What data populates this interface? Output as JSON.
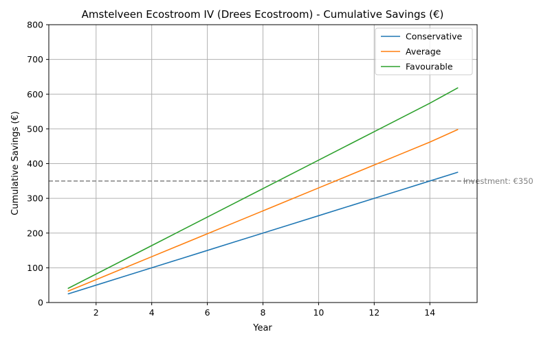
{
  "chart_data": {
    "type": "line",
    "title": "Amstelveen Ecostroom IV (Drees Ecostroom) - Cumulative Savings (€)",
    "xlabel": "Year",
    "ylabel": "Cumulative Savings (€)",
    "x": [
      1,
      2,
      3,
      4,
      5,
      6,
      7,
      8,
      9,
      10,
      11,
      12,
      13,
      14,
      15
    ],
    "xlim": [
      0.3,
      15.7
    ],
    "ylim": [
      0,
      800
    ],
    "xticks": [
      2,
      4,
      6,
      8,
      10,
      12,
      14
    ],
    "yticks": [
      0,
      100,
      200,
      300,
      400,
      500,
      600,
      700,
      800
    ],
    "grid": true,
    "legend_position": "top-right",
    "series": [
      {
        "name": "Conservative",
        "color": "#1f77b4",
        "values": [
          25,
          50,
          75,
          100,
          125,
          150,
          175,
          200,
          225,
          250,
          275,
          300,
          325,
          350,
          375
        ]
      },
      {
        "name": "Average",
        "color": "#ff7f0e",
        "values": [
          33,
          66,
          99,
          132,
          165,
          198,
          231,
          264,
          297,
          330,
          363,
          396,
          429,
          462,
          498
        ]
      },
      {
        "name": "Favourable",
        "color": "#2ca02c",
        "values": [
          41,
          82,
          123,
          164,
          205,
          246,
          287,
          328,
          369,
          410,
          451,
          492,
          533,
          574,
          618
        ]
      }
    ],
    "reference_line": {
      "y": 350,
      "color": "#808080",
      "label": "Investment: €350"
    }
  }
}
